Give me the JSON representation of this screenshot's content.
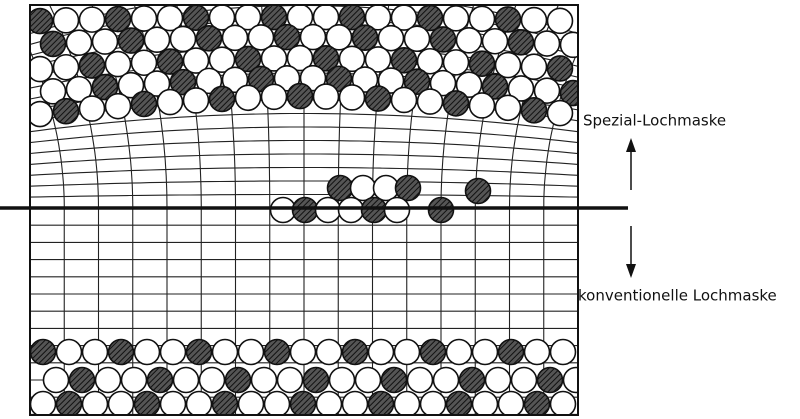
{
  "labels": {
    "top": "Spezial-Lochmaske",
    "bottom": "konventionelle Lochmaske"
  }
}
